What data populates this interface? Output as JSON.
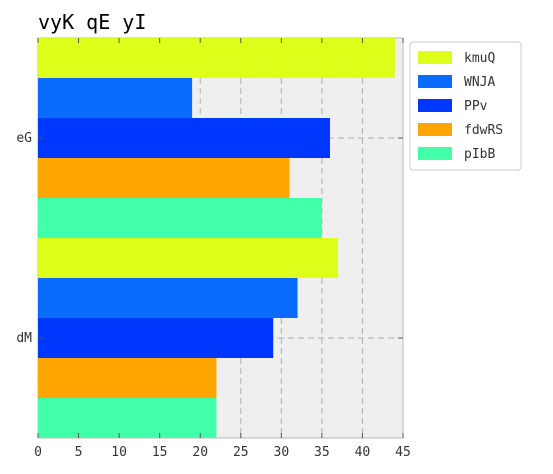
{
  "chart_data": {
    "type": "bar",
    "orientation": "horizontal",
    "title": "vyK qE yI",
    "xlabel": "",
    "ylabel": "",
    "categories": [
      "eG",
      "dM"
    ],
    "series": [
      {
        "name": "kmuQ",
        "values": [
          44,
          37
        ],
        "color": "#ddff1a"
      },
      {
        "name": "WNJA",
        "values": [
          19,
          32
        ],
        "color": "#0a6cff"
      },
      {
        "name": "PPv",
        "values": [
          36,
          29
        ],
        "color": "#0037ff"
      },
      {
        "name": "fdwRS",
        "values": [
          31,
          22
        ],
        "color": "#ffa500"
      },
      {
        "name": "pIbB",
        "values": [
          35,
          22
        ],
        "color": "#42ffa9"
      }
    ],
    "xlim": [
      0,
      45
    ],
    "xticks": [
      0,
      5,
      10,
      15,
      20,
      25,
      30,
      35,
      40,
      45
    ],
    "grid": true,
    "legend_position": "top-right",
    "background": "#efefef"
  }
}
